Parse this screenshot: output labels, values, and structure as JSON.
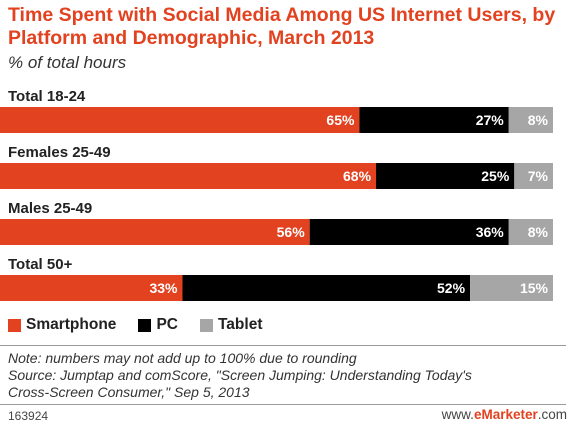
{
  "chart_data": {
    "type": "bar",
    "orientation": "horizontal",
    "stacked": true,
    "title": "Time Spent with Social Media Among US Internet Users, by Platform and Demographic, March 2013",
    "subtitle": "% of total hours",
    "categories": [
      "Total 18-24",
      "Females 25-49",
      "Males 25-49",
      "Total 50+"
    ],
    "series": [
      {
        "name": "Smartphone",
        "values": [
          65,
          68,
          56,
          33
        ],
        "labels": [
          "65%",
          "68%",
          "56%",
          "33%"
        ],
        "color": "#e2421f"
      },
      {
        "name": "PC",
        "values": [
          27,
          25,
          36,
          52
        ],
        "labels": [
          "27%",
          "25%",
          "36%",
          "52%"
        ],
        "color": "#000000"
      },
      {
        "name": "Tablet",
        "values": [
          8,
          7,
          8,
          15
        ],
        "labels": [
          "8%",
          "7%",
          "8%",
          "15%"
        ],
        "color": "#a6a6a6"
      }
    ],
    "legend_position": "bottom-left",
    "grid": false
  },
  "note_lines": [
    "Note: numbers may not add up to 100% due to rounding",
    "Source: Jumptap and comScore, \"Screen Jumping: Understanding Today's",
    "Cross-Screen Consumer,\" Sep 5, 2013"
  ],
  "footer": {
    "id": "163924",
    "brand_prefix": "www.",
    "brand_highlight": "eMarketer",
    "brand_suffix": ".com"
  },
  "colors": {
    "accent": "#e2421f",
    "pc": "#000000",
    "tablet": "#a6a6a6"
  }
}
